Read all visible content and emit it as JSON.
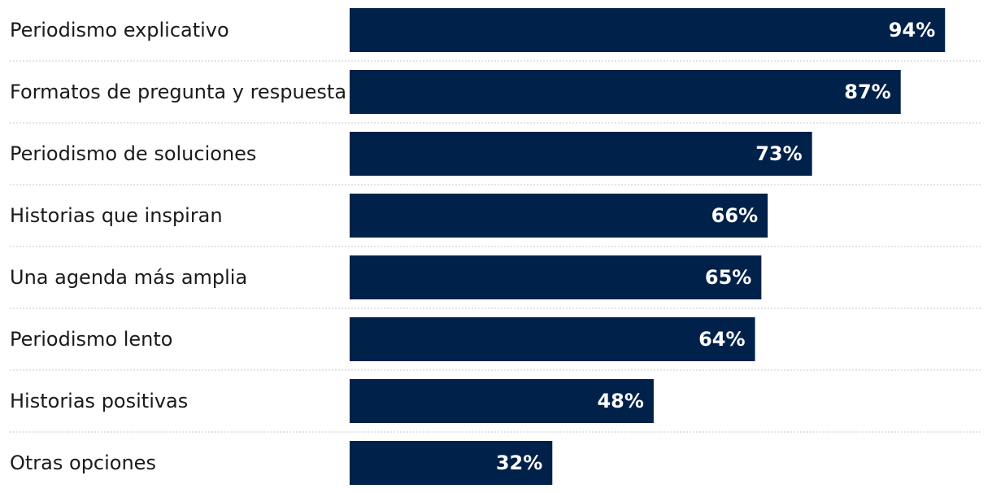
{
  "chart_data": {
    "type": "bar",
    "orientation": "horizontal",
    "categories": [
      "Periodismo explicativo",
      "Formatos de pregunta y respuesta",
      "Periodismo de soluciones",
      "Historias que inspiran",
      "Una agenda más amplia",
      "Periodismo lento",
      "Historias positivas",
      "Otras opciones"
    ],
    "values": [
      94,
      87,
      73,
      66,
      65,
      64,
      48,
      32
    ],
    "value_labels": [
      "94%",
      "87%",
      "73%",
      "66%",
      "65%",
      "64%",
      "48%",
      "32%"
    ],
    "xlim": [
      0,
      100
    ],
    "grid": false,
    "legend": "none",
    "bar_color": "#00214a",
    "label_color": "#ffffff"
  }
}
